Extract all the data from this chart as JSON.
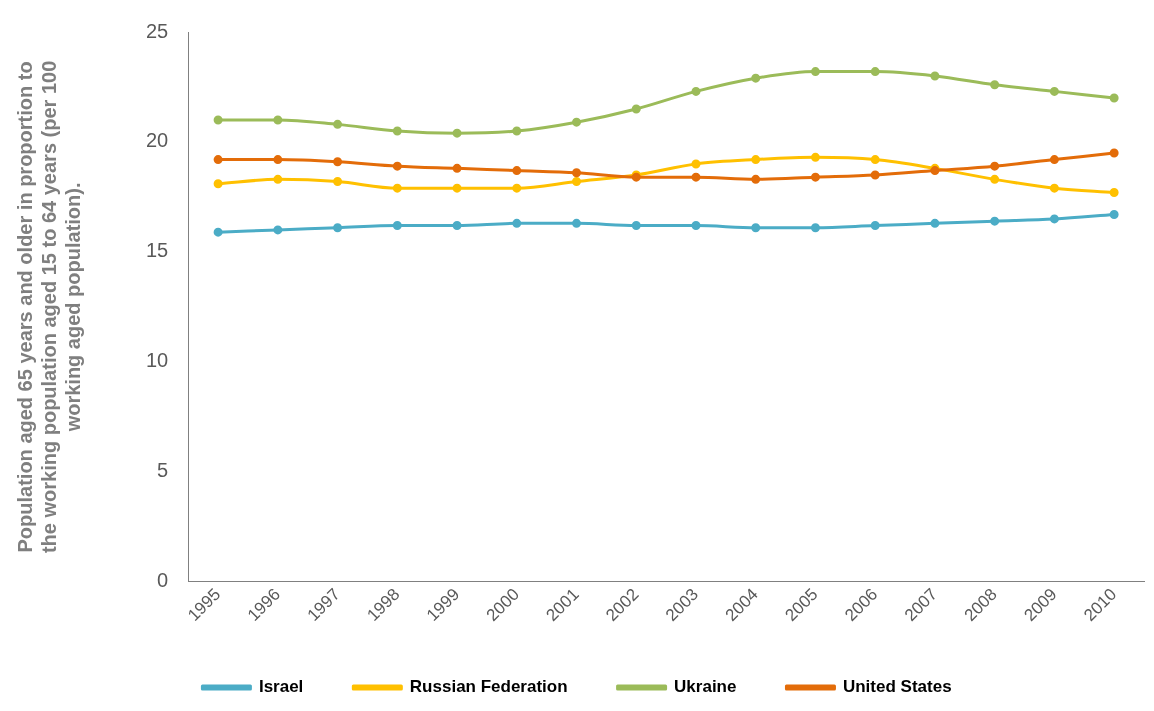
{
  "chart_data": {
    "type": "line",
    "ylabel": "Population aged 65 years and older in proportion to the working population aged 15 to 64 years (per 100 working aged population).",
    "categories": [
      "1995",
      "1996",
      "1997",
      "1998",
      "1999",
      "2000",
      "2001",
      "2002",
      "2003",
      "2004",
      "2005",
      "2006",
      "2007",
      "2008",
      "2009",
      "2010"
    ],
    "series": [
      {
        "name": "Israel",
        "color": "#4bacc6",
        "values": [
          15.9,
          16.0,
          16.1,
          16.2,
          16.2,
          16.3,
          16.3,
          16.2,
          16.2,
          16.1,
          16.1,
          16.2,
          16.3,
          16.4,
          16.5,
          16.7
        ]
      },
      {
        "name": "Russian Federation",
        "color": "#ffc000",
        "values": [
          18.1,
          18.3,
          18.2,
          17.9,
          17.9,
          17.9,
          18.2,
          18.5,
          19.0,
          19.2,
          19.3,
          19.2,
          18.8,
          18.3,
          17.9,
          17.7
        ]
      },
      {
        "name": "Ukraine",
        "color": "#9bbb59",
        "values": [
          21.0,
          21.0,
          20.8,
          20.5,
          20.4,
          20.5,
          20.9,
          21.5,
          22.3,
          22.9,
          23.2,
          23.2,
          23.0,
          22.6,
          22.3,
          22.0
        ]
      },
      {
        "name": "United States",
        "color": "#e36c09",
        "values": [
          19.2,
          19.2,
          19.1,
          18.9,
          18.8,
          18.7,
          18.6,
          18.4,
          18.4,
          18.3,
          18.4,
          18.5,
          18.7,
          18.9,
          19.2,
          19.5
        ]
      }
    ],
    "ylim": [
      0,
      25
    ],
    "yticks": [
      0,
      5,
      10,
      15,
      20,
      25
    ],
    "grid": false,
    "legend": "bottom",
    "marker": "circle",
    "line_style": "solid"
  }
}
